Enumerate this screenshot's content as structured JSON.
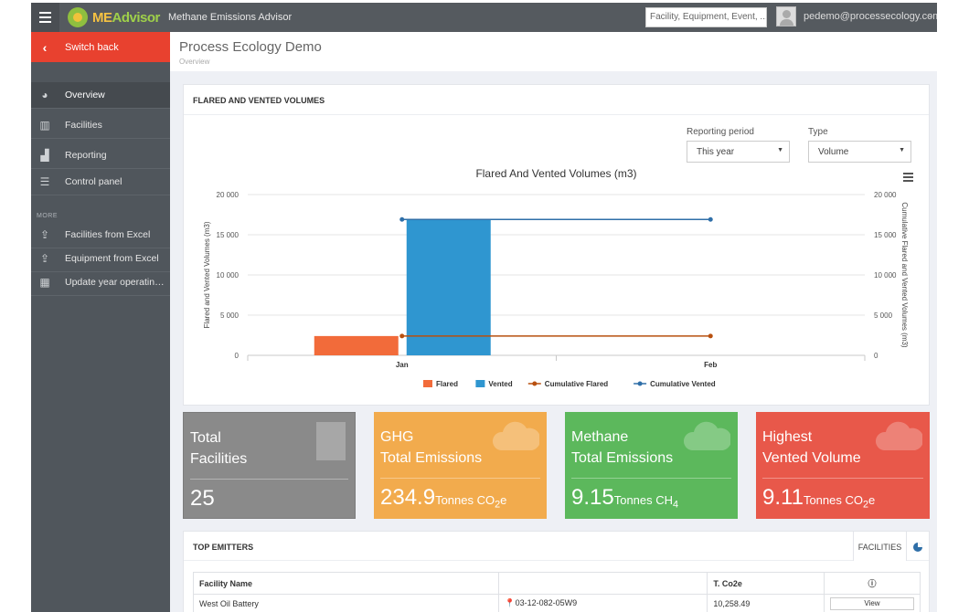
{
  "topbar": {
    "logo_me": "ME",
    "logo_advisor": "Advisor",
    "app_title": "Methane Emissions Advisor",
    "search_placeholder": "Facility, Equipment, Event, ...",
    "user_email": "pedemo@processecology.com"
  },
  "sidebar": {
    "switch_back": "Switch back",
    "items": [
      {
        "label": "Overview",
        "icon": "dashboard-icon"
      },
      {
        "label": "Facilities",
        "icon": "building-icon"
      },
      {
        "label": "Reporting",
        "icon": "bar-chart-icon"
      },
      {
        "label": "Control panel",
        "icon": "sliders-icon"
      }
    ],
    "more_label": "MORE",
    "more_items": [
      {
        "label": "Facilities from Excel",
        "icon": "upload-icon"
      },
      {
        "label": "Equipment from Excel",
        "icon": "upload-icon"
      },
      {
        "label": "Update year operating ...",
        "icon": "calendar-icon"
      }
    ]
  },
  "header": {
    "title": "Process Ecology Demo",
    "breadcrumb": "Overview"
  },
  "chart_panel": {
    "heading": "FLARED AND VENTED VOLUMES",
    "period_label": "Reporting period",
    "period_value": "This year",
    "type_label": "Type",
    "type_value": "Volume"
  },
  "chart_data": {
    "type": "bar",
    "title": "Flared And Vented Volumes (m3)",
    "categories": [
      "Jan",
      "Feb"
    ],
    "ylabel": "Flared and Vented Volumes (m3)",
    "y2label": "Cumulative Flared and Vented Volumes (m3)",
    "ylim": [
      0,
      20000
    ],
    "yticks": [
      "0",
      "5 000",
      "10 000",
      "15 000",
      "20 000"
    ],
    "series": [
      {
        "name": "Flared",
        "kind": "bar",
        "color": "#f26b3a",
        "values": [
          2400,
          0
        ]
      },
      {
        "name": "Vented",
        "kind": "bar",
        "color": "#2f96d0",
        "values": [
          16900,
          0
        ]
      },
      {
        "name": "Cumulative Flared",
        "kind": "line",
        "color": "#b8500f",
        "values": [
          2400,
          2400
        ]
      },
      {
        "name": "Cumulative Vented",
        "kind": "line",
        "color": "#2f6fa8",
        "values": [
          16900,
          16900
        ]
      }
    ]
  },
  "cards": [
    {
      "line1": "Total",
      "line2": "Facilities",
      "value": "25",
      "unit": "",
      "sub": "",
      "icon": "building-icon"
    },
    {
      "line1": "GHG",
      "line2": "Total Emissions",
      "value": "234.9",
      "unit": "Tonnes CO",
      "sub": "2",
      "unit_tail": "e",
      "icon": "cloud-icon"
    },
    {
      "line1": "Methane",
      "line2": "Total Emissions",
      "value": "9.15",
      "unit": "Tonnes CH",
      "sub": "4",
      "unit_tail": "",
      "icon": "cloud-icon"
    },
    {
      "line1": "Highest",
      "line2": "Vented Volume",
      "value": "9.11",
      "unit": "Tonnes CO",
      "sub": "2",
      "unit_tail": "e",
      "icon": "cloud-icon"
    }
  ],
  "emitters": {
    "heading": "TOP EMITTERS",
    "tab_facilities": "FACILITIES",
    "columns": [
      "Facility Name",
      "",
      "T. Co2e",
      "ⓘ"
    ],
    "rows": [
      {
        "name": "West Oil Battery",
        "location": "03-12-082-05W9",
        "co2e": "10,258.49",
        "action": "View"
      }
    ]
  }
}
